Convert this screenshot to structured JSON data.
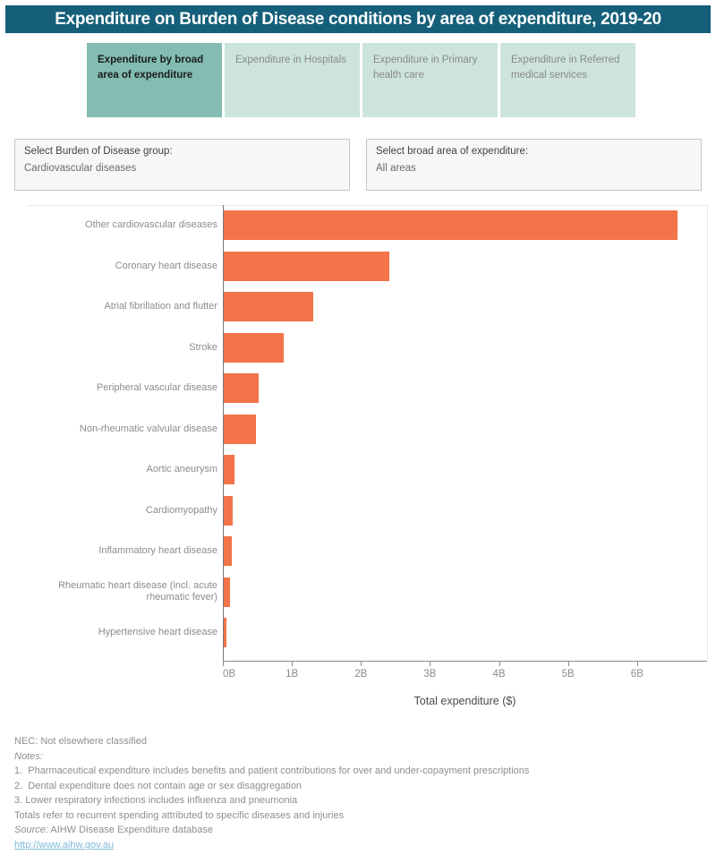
{
  "title": "Expenditure on Burden of Disease conditions by area of expenditure, 2019-20",
  "tabs": [
    {
      "label": "Expenditure by broad area of expenditure",
      "active": true
    },
    {
      "label": "Expenditure in Hospitals",
      "active": false
    },
    {
      "label": "Expenditure in Primary health care",
      "active": false
    },
    {
      "label": "Expenditure in Referred medical services",
      "active": false
    }
  ],
  "filters": [
    {
      "label": "Select Burden of Disease group:",
      "value": "Cardiovascular diseases"
    },
    {
      "label": "Select broad area of expenditure:",
      "value": "All areas"
    }
  ],
  "chart_data": {
    "type": "bar",
    "orientation": "horizontal",
    "categories": [
      "Other cardiovascular diseases",
      "Coronary heart disease",
      "Atrial fibrillation and flutter",
      "Stroke",
      "Peripheral vascular disease",
      "Non-rheumatic valvular disease",
      "Aortic aneurysm",
      "Cardiomyopathy",
      "Inflammatory heart disease",
      "Rheumatic heart disease (incl. acute rheumatic fever)",
      "Hypertensive heart disease"
    ],
    "values": [
      6.57,
      2.4,
      1.29,
      0.87,
      0.5,
      0.47,
      0.16,
      0.13,
      0.12,
      0.09,
      0.04
    ],
    "unit": "billions $",
    "xlabel": "Total expenditure ($)",
    "x_ticks": [
      "0B",
      "1B",
      "2B",
      "3B",
      "4B",
      "5B",
      "6B"
    ],
    "xlim": [
      0,
      7
    ],
    "grid": false,
    "legend": "none"
  },
  "footer": {
    "lines": [
      {
        "text": "NEC: Not elsewhere classified"
      },
      {
        "italic": "Notes:",
        "text": ""
      },
      {
        "text": "1.  Pharmaceutical expenditure includes benefits and patient contributions for over and under-copayment prescriptions"
      },
      {
        "text": "2.  Dental expenditure does not contain age or sex disaggregation"
      },
      {
        "text": "3. Lower respiratory infections includes influenza and pneumonia"
      },
      {
        "text": "Totals refer to recurrent spending attributed to specific diseases and injuries"
      },
      {
        "italic": "Source:",
        "text": " AIHW Disease Expenditure database"
      },
      {
        "text": "http://www.aihw.gov.au",
        "link": true
      }
    ]
  },
  "colors": {
    "header_bg": "#155F7A",
    "tab_active_bg": "#82BCB2",
    "tab_inactive_bg": "#CCE4DD",
    "bar": "#F27448",
    "link": "#7FB9D9"
  }
}
